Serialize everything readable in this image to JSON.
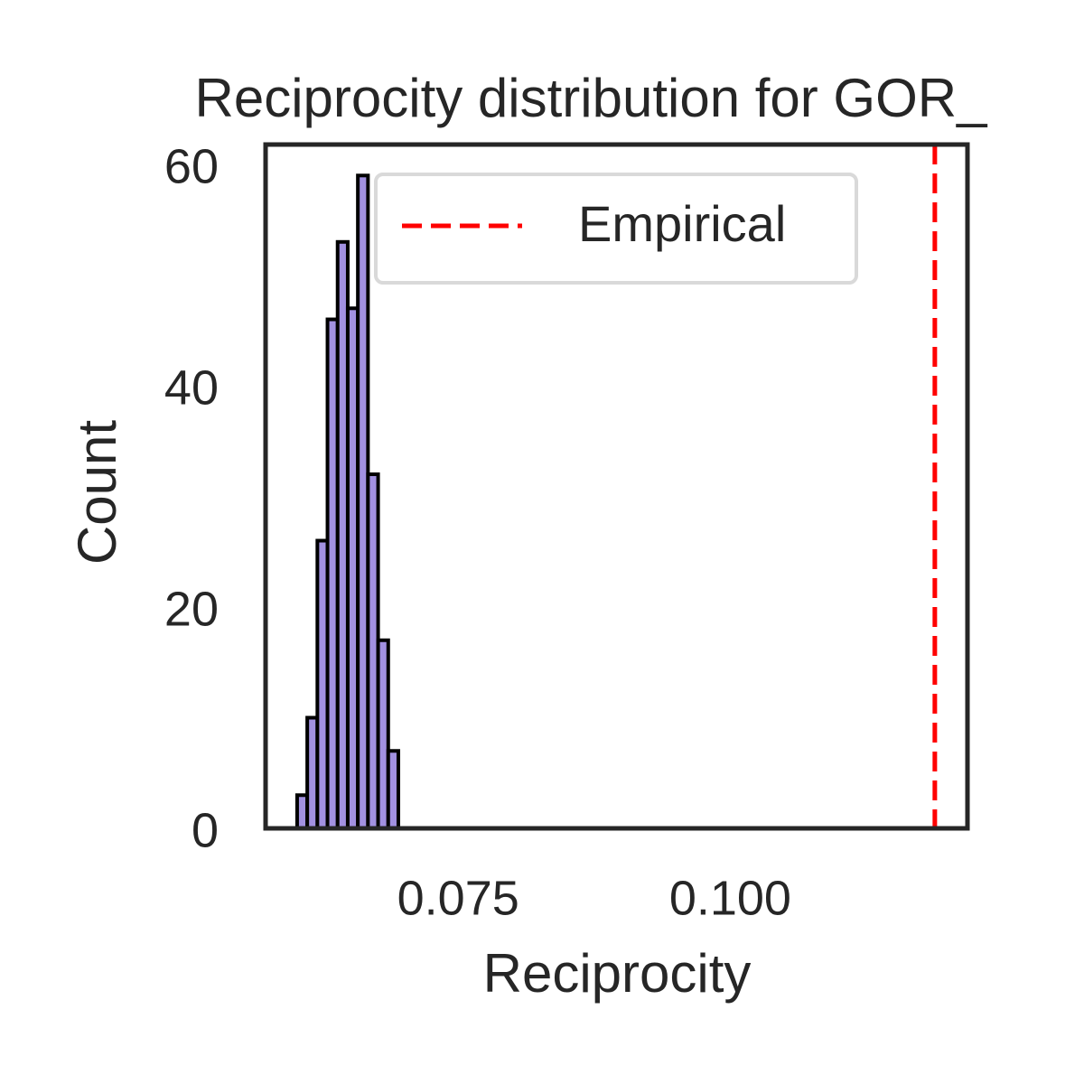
{
  "chart_data": {
    "type": "histogram",
    "title": "Reciprocity distribution for GOR_",
    "xlabel": "Reciprocity",
    "ylabel": "Count",
    "bins": [
      0.0602,
      0.06113,
      0.06206,
      0.06299,
      0.06392,
      0.06485,
      0.06578,
      0.06671,
      0.06764,
      0.06857,
      0.0695
    ],
    "values": [
      3,
      10,
      26,
      46,
      53,
      47,
      59,
      32,
      17,
      7
    ],
    "color": "#a291e1",
    "edgecolor": "#000000",
    "xlim": [
      0.0573,
      0.1218
    ],
    "ylim": [
      0,
      61.8
    ],
    "xticks": [
      0.075,
      {
        "value": 0.1,
        "label": "0.100"
      }
    ],
    "yticks": [
      0,
      20,
      40,
      60
    ],
    "vline": {
      "value": 0.1188,
      "label": "Empirical",
      "color": "#ff0000"
    },
    "legend": "upper center"
  }
}
